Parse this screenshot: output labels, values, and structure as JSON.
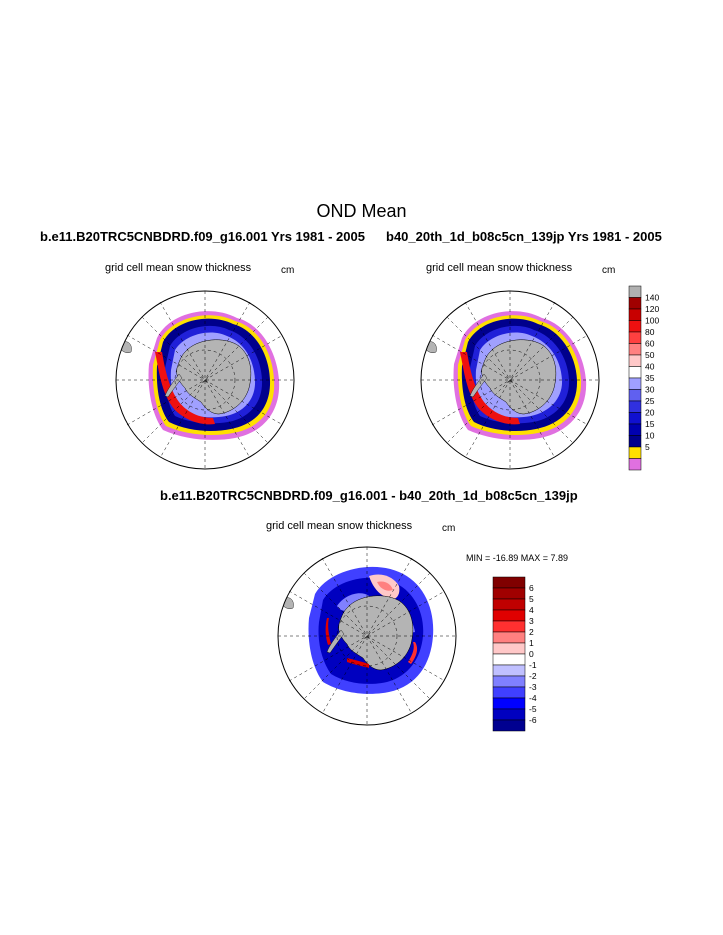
{
  "page_title": "OND Mean",
  "top_left": {
    "run_title": "b.e11.B20TRC5CNBDRD.f09_g16.001  Yrs 1981 - 2005",
    "variable_label": "grid cell mean snow thickness",
    "units": "cm"
  },
  "top_right": {
    "run_title": "b40_20th_1d_b08c5cn_139jp  Yrs 1981 - 2005",
    "variable_label": "grid cell mean snow thickness",
    "units": "cm"
  },
  "difference": {
    "run_title": "b.e11.B20TRC5CNBDRD.f09_g16.001 - b40_20th_1d_b08c5cn_139jp",
    "variable_label": "grid cell mean snow thickness",
    "units": "cm",
    "min_max_text": "MIN = -16.89 MAX =   7.89"
  },
  "snow_colorbar": {
    "labels": [
      "140",
      "120",
      "100",
      "80",
      "60",
      "50",
      "40",
      "35",
      "30",
      "25",
      "20",
      "15",
      "10",
      "5"
    ],
    "colors": [
      "#b0b0b0",
      "#a00000",
      "#c80000",
      "#ee1010",
      "#ff4040",
      "#ff8080",
      "#ffc8c8",
      "#ffffff",
      "#a0a0ff",
      "#6060f0",
      "#3030e0",
      "#1010d0",
      "#0000b0",
      "#00008c",
      "#ffe000",
      "#e070e0"
    ]
  },
  "diff_colorbar": {
    "labels": [
      "6",
      "5",
      "4",
      "3",
      "2",
      "1",
      "0",
      "-1",
      "-2",
      "-3",
      "-4",
      "-5",
      "-6"
    ],
    "colors": [
      "#800000",
      "#a00000",
      "#c00000",
      "#e00000",
      "#ff3030",
      "#ff8080",
      "#ffc8c8",
      "#ffffff",
      "#c0c0ff",
      "#8080ff",
      "#4040ff",
      "#0000ff",
      "#0000c0",
      "#000090"
    ]
  },
  "colors": {
    "land": "#b4b4b4",
    "ocean": "#ffffff"
  }
}
